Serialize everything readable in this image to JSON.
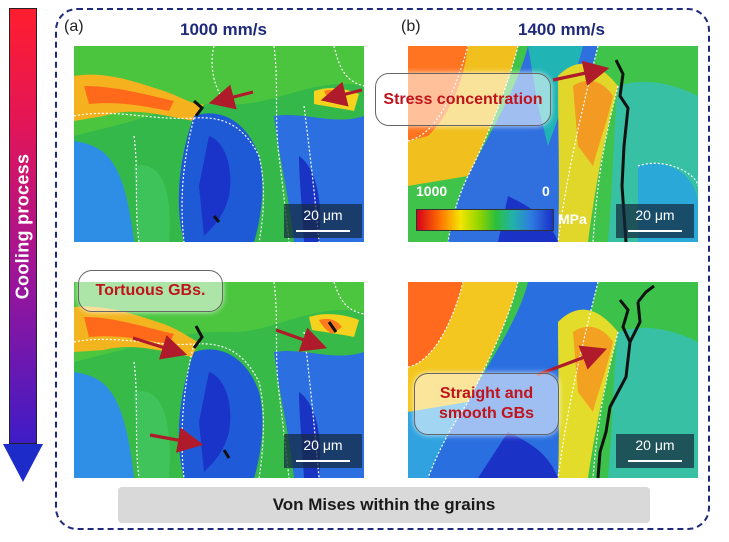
{
  "cooling_label": "Cooling process",
  "panels": {
    "a_label": "(a)",
    "b_label": "(b)",
    "a_title": "1000 mm/s",
    "b_title": "1400 mm/s"
  },
  "scalebar_text": "20 μm",
  "legend": {
    "max": "1000",
    "min": "0",
    "unit": "MPa"
  },
  "callouts": {
    "stress": "Stress concentration",
    "tortuous": "Tortuous GBs.",
    "straight": "Straight and smooth GBs"
  },
  "footer": "Von Mises within the grains",
  "colors": {
    "frame": "#1f2a7a",
    "callout_text": "#c0131b",
    "arrow_marker": "#b01b2b"
  }
}
